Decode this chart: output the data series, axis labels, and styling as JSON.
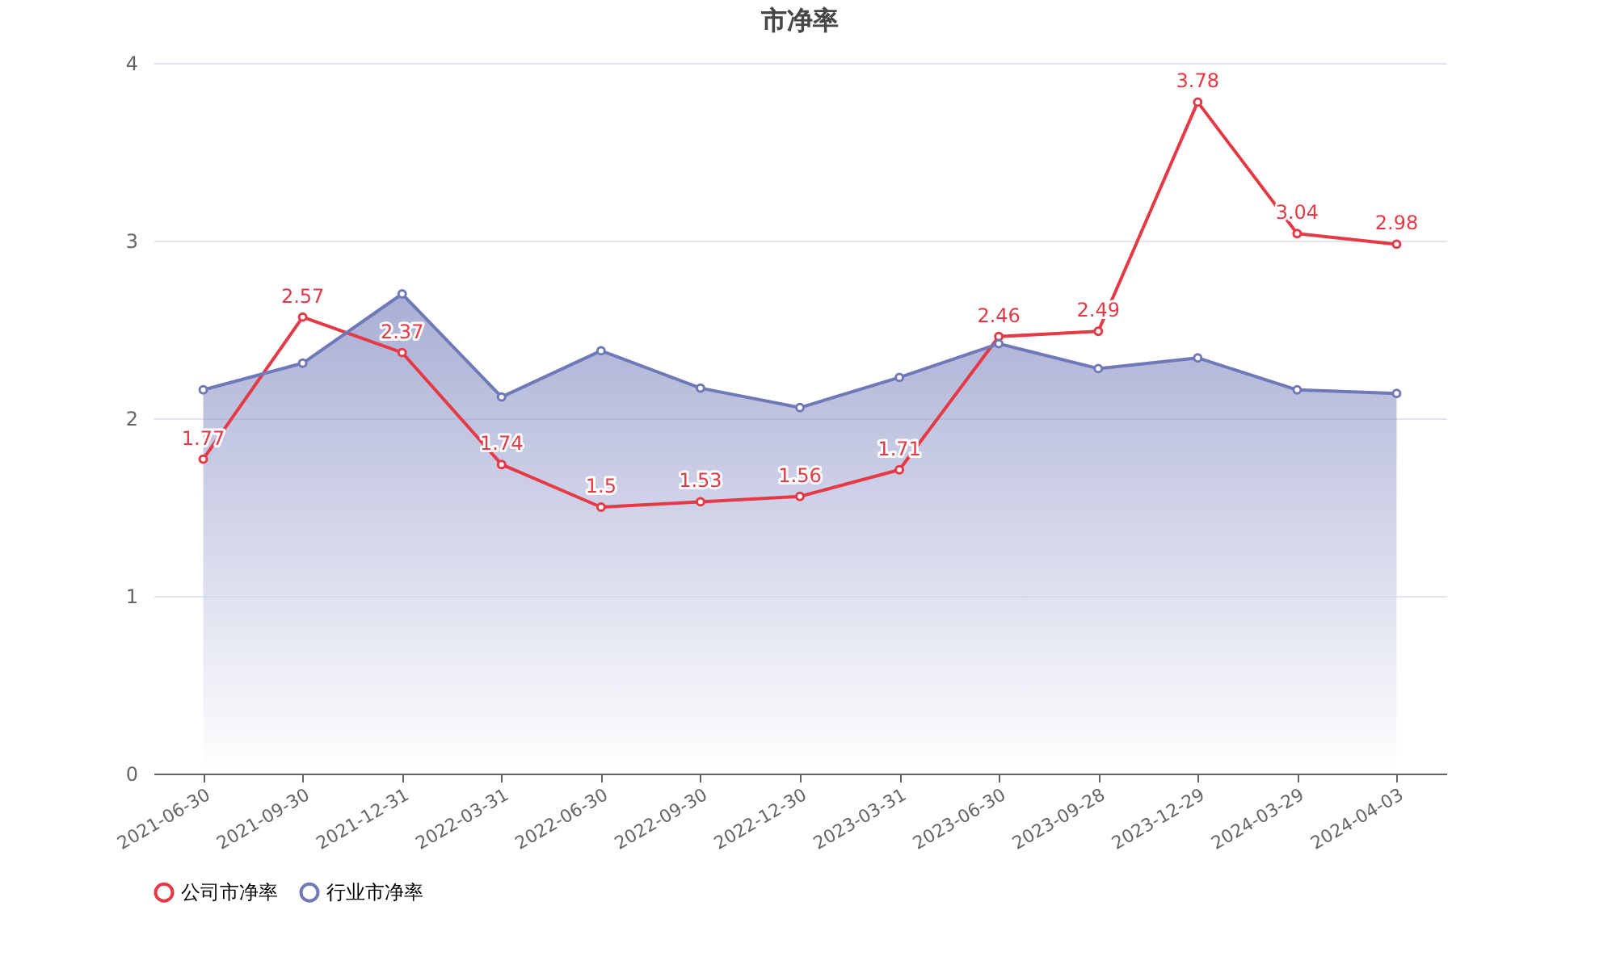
{
  "chart_data": {
    "type": "line",
    "title": "市净率",
    "categories": [
      "2021-06-30",
      "2021-09-30",
      "2021-12-31",
      "2022-03-31",
      "2022-06-30",
      "2022-09-30",
      "2022-12-30",
      "2023-03-31",
      "2023-06-30",
      "2023-09-28",
      "2023-12-29",
      "2024-03-29",
      "2024-04-03"
    ],
    "series": [
      {
        "name": "公司市净率",
        "color": "#e63946",
        "type": "line",
        "values": [
          1.77,
          2.57,
          2.37,
          1.74,
          1.5,
          1.53,
          1.56,
          1.71,
          2.46,
          2.49,
          3.78,
          3.04,
          2.98
        ],
        "value_labels": [
          "1.77",
          "2.57",
          "2.37",
          "1.74",
          "1.5",
          "1.53",
          "1.56",
          "1.71",
          "2.46",
          "2.49",
          "3.78",
          "3.04",
          "2.98"
        ]
      },
      {
        "name": "行业市净率",
        "color": "#7079b8",
        "type": "area",
        "values": [
          2.16,
          2.31,
          2.7,
          2.12,
          2.38,
          2.17,
          2.06,
          2.23,
          2.42,
          2.28,
          2.34,
          2.16,
          2.14
        ]
      }
    ],
    "ylim": [
      0,
      4
    ],
    "yticks": [
      0,
      1,
      2,
      3,
      4
    ],
    "grid": "y",
    "legend": "bottom",
    "marker": "circle"
  }
}
